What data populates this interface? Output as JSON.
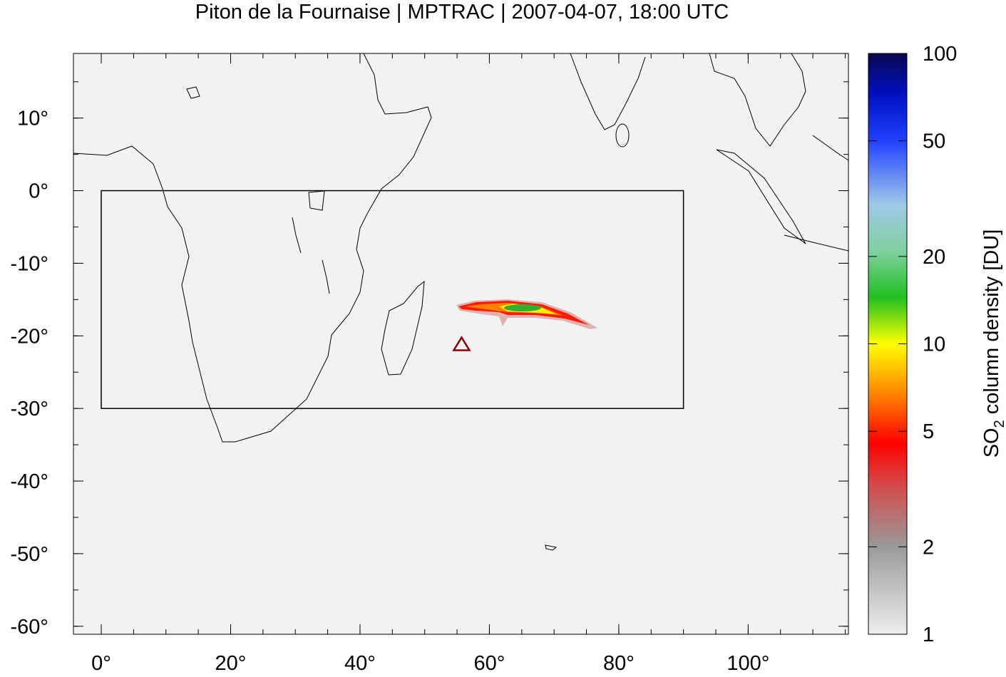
{
  "chart_data": {
    "type": "map",
    "title": "Piton de la Fournaise | MPTRAC | 2007-04-07, 18:00 UTC",
    "xlim": [
      -4.3,
      115.5
    ],
    "ylim": [
      -61.1,
      18.9
    ],
    "xticks": [
      {
        "value": 0,
        "label": "0°"
      },
      {
        "value": 20,
        "label": "20°"
      },
      {
        "value": 40,
        "label": "40°"
      },
      {
        "value": 60,
        "label": "60°"
      },
      {
        "value": 80,
        "label": "80°"
      },
      {
        "value": 100,
        "label": "100°"
      }
    ],
    "yticks": [
      {
        "value": 10,
        "label": "10°"
      },
      {
        "value": 0,
        "label": "0°"
      },
      {
        "value": -10,
        "label": "-10°"
      },
      {
        "value": -20,
        "label": "-20°"
      },
      {
        "value": -30,
        "label": "-30°"
      },
      {
        "value": -40,
        "label": "-40°"
      },
      {
        "value": -50,
        "label": "-50°"
      },
      {
        "value": -60,
        "label": "-60°"
      }
    ],
    "xminorticks": [
      0,
      5,
      10,
      15,
      20,
      25,
      30,
      35,
      40,
      45,
      50,
      55,
      60,
      65,
      70,
      75,
      80,
      85,
      90,
      95,
      100,
      105,
      110,
      115
    ],
    "yminorticks": [
      -60,
      -55,
      -50,
      -45,
      -40,
      -35,
      -30,
      -25,
      -20,
      -15,
      -10,
      -5,
      0,
      5,
      10,
      15
    ],
    "region": {
      "lon": [
        0,
        90
      ],
      "lat": [
        -30,
        0
      ]
    },
    "volcano": {
      "lon": 55.7,
      "lat": -21.2,
      "color": "#8b0000"
    },
    "colorbar": {
      "label_parts": [
        "SO",
        "2",
        " column density [DU]"
      ],
      "log": true,
      "lim": [
        1,
        100
      ],
      "ticks": [
        1,
        2,
        5,
        10,
        20,
        50,
        100
      ]
    }
  }
}
